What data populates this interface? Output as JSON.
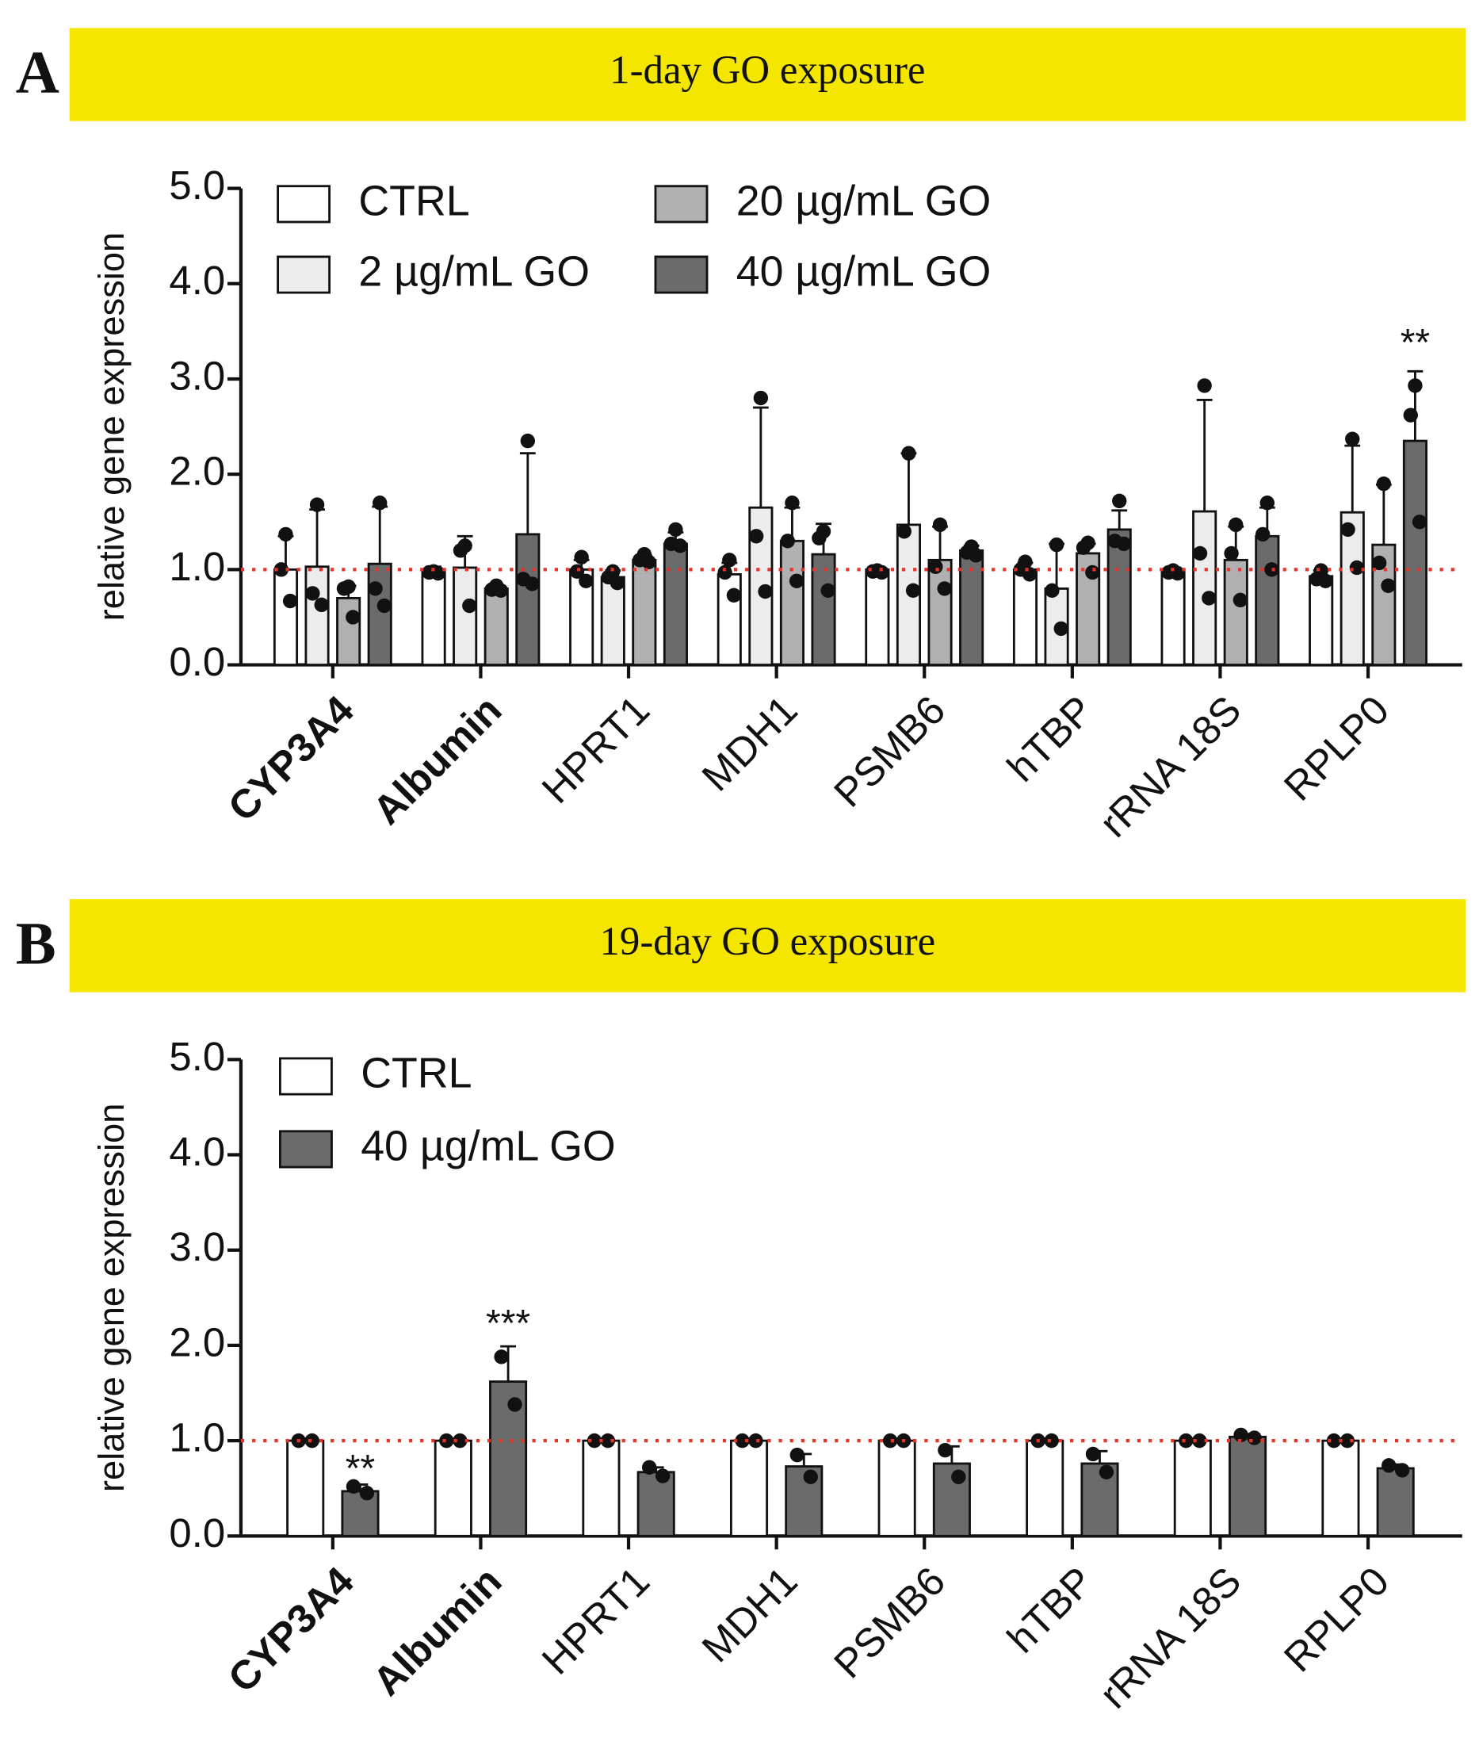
{
  "chart_data": [
    {
      "type": "bar",
      "panel_label": "A",
      "title": "1-day GO exposure",
      "ylabel": "relative gene expression",
      "categories": [
        "CYP3A4",
        "Albumin",
        "HPRT1",
        "MDH1",
        "PSMB6",
        "hTBP",
        "rRNA 18S",
        "RPLP0"
      ],
      "bold_categories": [
        0,
        1
      ],
      "ylim": [
        0,
        5
      ],
      "yticks": [
        {
          "value": 0,
          "label": "0.0"
        },
        {
          "value": 1,
          "label": "1.0"
        },
        {
          "value": 2,
          "label": "2.0"
        },
        {
          "value": 3,
          "label": "3.0"
        },
        {
          "value": 4,
          "label": "4.0"
        },
        {
          "value": 5,
          "label": "5.0"
        }
      ],
      "reference_line": {
        "value": 1,
        "color": "#e8322a"
      },
      "legend_columns": 2,
      "series": [
        {
          "name": "CTRL",
          "color": "#ffffff",
          "values": [
            1.0,
            1.0,
            1.0,
            0.95,
            1.0,
            1.0,
            1.0,
            0.93
          ],
          "errors": [
            0.35,
            0.03,
            0.1,
            0.12,
            0.02,
            0.07,
            0.02,
            0.06
          ],
          "points": [
            [
              1.37,
              1.0,
              0.67
            ],
            [
              0.98,
              0.97,
              0.96
            ],
            [
              1.13,
              0.98,
              0.88
            ],
            [
              1.1,
              0.97,
              0.73
            ],
            [
              0.99,
              0.98,
              0.97
            ],
            [
              1.08,
              1.0,
              0.95
            ],
            [
              0.99,
              0.97,
              0.96
            ],
            [
              0.99,
              0.9,
              0.88
            ]
          ]
        },
        {
          "name": "2 µg/mL GO",
          "color": "#ececec",
          "values": [
            1.03,
            1.02,
            0.92,
            1.65,
            1.47,
            0.8,
            1.61,
            1.6
          ],
          "errors": [
            0.6,
            0.33,
            0.07,
            1.05,
            0.75,
            0.47,
            1.17,
            0.7
          ],
          "points": [
            [
              1.68,
              0.75,
              0.63
            ],
            [
              1.25,
              1.2,
              0.62
            ],
            [
              0.98,
              0.92,
              0.86
            ],
            [
              2.8,
              1.35,
              0.77
            ],
            [
              2.22,
              1.4,
              0.78
            ],
            [
              1.26,
              0.78,
              0.38
            ],
            [
              2.93,
              1.17,
              0.7
            ],
            [
              2.37,
              1.42,
              1.02
            ]
          ]
        },
        {
          "name": "20 µg/mL GO",
          "color": "#b0b0b0",
          "values": [
            0.7,
            0.8,
            1.1,
            1.3,
            1.1,
            1.17,
            1.1,
            1.26
          ],
          "errors": [
            0.13,
            0.03,
            0.05,
            0.35,
            0.35,
            0.1,
            0.35,
            0.63
          ],
          "points": [
            [
              0.82,
              0.8,
              0.5
            ],
            [
              0.83,
              0.79,
              0.78
            ],
            [
              1.16,
              1.1,
              1.08
            ],
            [
              1.7,
              1.3,
              0.88
            ],
            [
              1.47,
              1.03,
              0.8
            ],
            [
              1.28,
              1.23,
              0.97
            ],
            [
              1.47,
              1.17,
              0.68
            ],
            [
              1.9,
              1.07,
              0.83
            ]
          ]
        },
        {
          "name": "40 µg/mL GO",
          "color": "#6b6b6b",
          "values": [
            1.06,
            1.37,
            1.27,
            1.16,
            1.2,
            1.42,
            1.35,
            2.35
          ],
          "errors": [
            0.6,
            0.85,
            0.12,
            0.32,
            0.05,
            0.2,
            0.3,
            0.73
          ],
          "points": [
            [
              1.7,
              0.8,
              0.62
            ],
            [
              2.35,
              0.9,
              0.85
            ],
            [
              1.42,
              1.27,
              1.25
            ],
            [
              1.4,
              1.33,
              0.78
            ],
            [
              1.24,
              1.18,
              1.15
            ],
            [
              1.72,
              1.3,
              1.27
            ],
            [
              1.7,
              1.37,
              1.0
            ],
            [
              2.93,
              2.62,
              1.5
            ]
          ]
        }
      ],
      "annotations": [
        {
          "text": "**",
          "category": 7,
          "series": 3,
          "y": 3.35
        }
      ]
    },
    {
      "type": "bar",
      "panel_label": "B",
      "title": "19-day GO exposure",
      "ylabel": "relative gene expression",
      "categories": [
        "CYP3A4",
        "Albumin",
        "HPRT1",
        "MDH1",
        "PSMB6",
        "hTBP",
        "rRNA 18S",
        "RPLP0"
      ],
      "bold_categories": [
        0,
        1
      ],
      "ylim": [
        0,
        5
      ],
      "yticks": [
        {
          "value": 0,
          "label": "0.0"
        },
        {
          "value": 1,
          "label": "1.0"
        },
        {
          "value": 2,
          "label": "2.0"
        },
        {
          "value": 3,
          "label": "3.0"
        },
        {
          "value": 4,
          "label": "4.0"
        },
        {
          "value": 5,
          "label": "5.0"
        }
      ],
      "reference_line": {
        "value": 1,
        "color": "#e8322a"
      },
      "legend_columns": 1,
      "series": [
        {
          "name": "CTRL",
          "color": "#ffffff",
          "values": [
            1.0,
            1.0,
            1.0,
            1.0,
            1.0,
            1.0,
            1.0,
            1.0
          ],
          "errors": [
            0.02,
            0.02,
            0.02,
            0.02,
            0.02,
            0.02,
            0.02,
            0.02
          ],
          "points": [
            [
              1.0,
              1.0
            ],
            [
              1.0,
              1.0
            ],
            [
              1.0,
              1.0
            ],
            [
              1.0,
              1.0
            ],
            [
              1.0,
              1.0
            ],
            [
              1.0,
              1.0
            ],
            [
              1.0,
              1.0
            ],
            [
              1.0,
              1.0
            ]
          ]
        },
        {
          "name": "40 µg/mL GO",
          "color": "#6b6b6b",
          "values": [
            0.47,
            1.62,
            0.67,
            0.73,
            0.76,
            0.76,
            1.04,
            0.71
          ],
          "errors": [
            0.07,
            0.37,
            0.05,
            0.13,
            0.18,
            0.13,
            0.03,
            0.04
          ],
          "points": [
            [
              0.52,
              0.45
            ],
            [
              1.88,
              1.38
            ],
            [
              0.72,
              0.63
            ],
            [
              0.85,
              0.62
            ],
            [
              0.9,
              0.62
            ],
            [
              0.86,
              0.67
            ],
            [
              1.06,
              1.03
            ],
            [
              0.74,
              0.69
            ]
          ]
        }
      ],
      "annotations": [
        {
          "text": "**",
          "category": 0,
          "series": 1,
          "y": 0.68
        },
        {
          "text": "***",
          "category": 1,
          "series": 1,
          "y": 2.2
        }
      ]
    }
  ]
}
